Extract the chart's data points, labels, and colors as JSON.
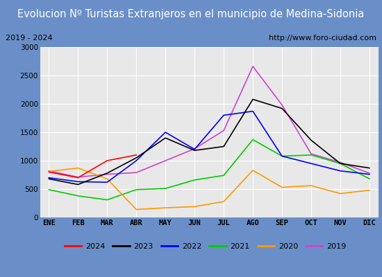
{
  "title": "Evolucion Nº Turistas Extranjeros en el municipio de Medina-Sidonia",
  "subtitle_left": "2019 - 2024",
  "subtitle_right": "http://www.foro-ciudad.com",
  "months": [
    "ENE",
    "FEB",
    "MAR",
    "ABR",
    "MAY",
    "JUN",
    "JUL",
    "AGO",
    "SEP",
    "OCT",
    "NOV",
    "DIC"
  ],
  "series": {
    "2024": [
      800,
      700,
      1000,
      1100,
      null,
      null,
      null,
      null,
      null,
      null,
      null,
      null
    ],
    "2023": [
      680,
      580,
      780,
      1050,
      1400,
      1180,
      1250,
      2080,
      1920,
      1360,
      950,
      870
    ],
    "2022": [
      700,
      630,
      620,
      1000,
      1500,
      1200,
      1800,
      1870,
      1080,
      950,
      820,
      760
    ],
    "2021": [
      490,
      380,
      310,
      490,
      510,
      660,
      740,
      1370,
      1080,
      1100,
      950,
      680
    ],
    "2020": [
      810,
      870,
      680,
      140,
      170,
      190,
      280,
      830,
      530,
      560,
      420,
      480
    ],
    "2019": [
      820,
      710,
      760,
      790,
      1000,
      1210,
      1530,
      2660,
      1980,
      1120,
      970,
      780
    ]
  },
  "colors": {
    "2024": "#ff0000",
    "2023": "#000000",
    "2022": "#0000ff",
    "2021": "#00cc00",
    "2020": "#ff9900",
    "2019": "#cc44cc"
  },
  "ylim": [
    0,
    3000
  ],
  "yticks": [
    0,
    500,
    1000,
    1500,
    2000,
    2500,
    3000
  ],
  "title_bg_color": "#4472c4",
  "title_text_color": "#ffffff",
  "plot_bg_color": "#e8e8e8",
  "grid_color": "#ffffff",
  "subtitle_box_color": "#ffffff",
  "border_color": "#aaaaaa",
  "legend_fontsize": 8,
  "title_fontsize": 10.5,
  "axis_fontsize": 7.5
}
